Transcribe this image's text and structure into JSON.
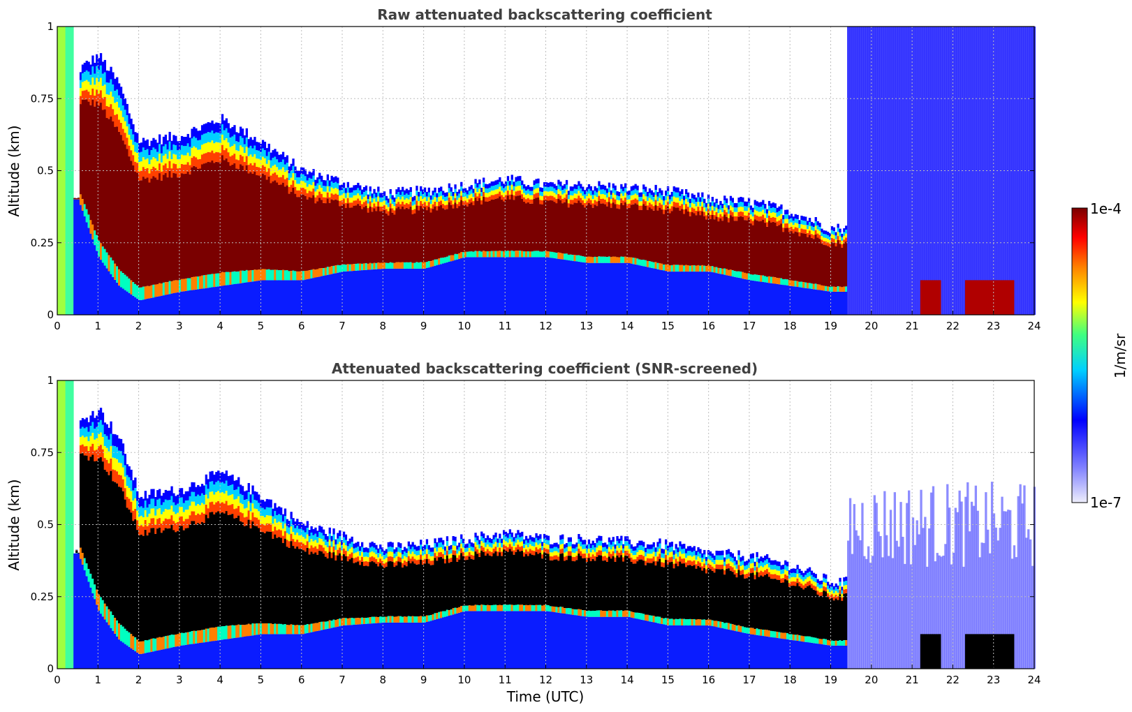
{
  "chart_data": [
    {
      "type": "heatmap",
      "title": "Raw attenuated backscattering coefficient",
      "xlabel": "",
      "ylabel": "Altitude (km)",
      "xlim": [
        0,
        24
      ],
      "ylim": [
        0,
        1
      ],
      "x_ticks": [
        "0",
        "1",
        "2",
        "3",
        "4",
        "5",
        "6",
        "7",
        "8",
        "9",
        "10",
        "11",
        "12",
        "13",
        "14",
        "15",
        "16",
        "17",
        "18",
        "19",
        "20",
        "21",
        "22",
        "23",
        "24"
      ],
      "y_ticks": [
        "0",
        "0.25",
        "0.5",
        "0.75",
        "1"
      ],
      "grid": true,
      "screened": false,
      "cloud_layer": {
        "time_utc": [
          0.5,
          1,
          1.5,
          2,
          3,
          4,
          5,
          6,
          7,
          8,
          9,
          10,
          11,
          12,
          13,
          14,
          15,
          16,
          17,
          18,
          19,
          19.4
        ],
        "top_km": [
          0.85,
          0.9,
          0.8,
          0.6,
          0.62,
          0.68,
          0.6,
          0.5,
          0.46,
          0.42,
          0.43,
          0.45,
          0.47,
          0.45,
          0.45,
          0.44,
          0.43,
          0.4,
          0.39,
          0.36,
          0.3,
          0.3
        ],
        "bottom_km": [
          0.4,
          0.2,
          0.1,
          0.05,
          0.08,
          0.1,
          0.12,
          0.12,
          0.15,
          0.16,
          0.16,
          0.2,
          0.2,
          0.2,
          0.18,
          0.18,
          0.15,
          0.15,
          0.12,
          0.1,
          0.08,
          0.08
        ]
      },
      "low_layer": {
        "time_utc": [
          21.2,
          24
        ],
        "top_km": 0.12,
        "bottom_km": 0.0
      },
      "noise_after_utc": 19.4,
      "colorbar": {
        "label": "1/m/sr",
        "min_label": "1e-7",
        "max_label": "1e-4",
        "scale": "log"
      }
    },
    {
      "type": "heatmap",
      "title": "Attenuated backscattering coefficient (SNR-screened)",
      "xlabel": "Time (UTC)",
      "ylabel": "Altitude (km)",
      "xlim": [
        0,
        24
      ],
      "ylim": [
        0,
        1
      ],
      "x_ticks": [
        "0",
        "1",
        "2",
        "3",
        "4",
        "5",
        "6",
        "7",
        "8",
        "9",
        "10",
        "11",
        "12",
        "13",
        "14",
        "15",
        "16",
        "17",
        "18",
        "19",
        "20",
        "21",
        "22",
        "23",
        "24"
      ],
      "y_ticks": [
        "0",
        "0.25",
        "0.5",
        "0.75",
        "1"
      ],
      "grid": true,
      "screened": true,
      "saturated_color": "#000000",
      "cloud_layer": {
        "time_utc": [
          0.5,
          1,
          1.5,
          2,
          3,
          4,
          5,
          6,
          7,
          8,
          9,
          10,
          11,
          12,
          13,
          14,
          15,
          16,
          17,
          18,
          19,
          19.4
        ],
        "top_km": [
          0.85,
          0.9,
          0.8,
          0.6,
          0.62,
          0.68,
          0.6,
          0.5,
          0.46,
          0.42,
          0.43,
          0.45,
          0.47,
          0.45,
          0.45,
          0.44,
          0.43,
          0.4,
          0.39,
          0.36,
          0.3,
          0.3
        ],
        "bottom_km": [
          0.4,
          0.2,
          0.1,
          0.05,
          0.08,
          0.1,
          0.12,
          0.12,
          0.15,
          0.16,
          0.16,
          0.2,
          0.2,
          0.2,
          0.18,
          0.18,
          0.15,
          0.15,
          0.12,
          0.1,
          0.08,
          0.08
        ]
      },
      "low_layer": {
        "time_utc": [
          21.2,
          24
        ],
        "top_km": 0.12,
        "bottom_km": 0.0
      },
      "noise_after_utc": 19.4,
      "colorbar": {
        "label": "1/m/sr",
        "min_label": "1e-7",
        "max_label": "1e-4",
        "scale": "log"
      }
    }
  ],
  "colorbar": {
    "label": "1/m/sr",
    "max_label": "1e-4",
    "min_label": "1e-7",
    "stops": [
      "#eeeefc",
      "#0000ff",
      "#00d0ff",
      "#40ff80",
      "#ffff00",
      "#ff8000",
      "#ff0000",
      "#7a0000"
    ]
  }
}
